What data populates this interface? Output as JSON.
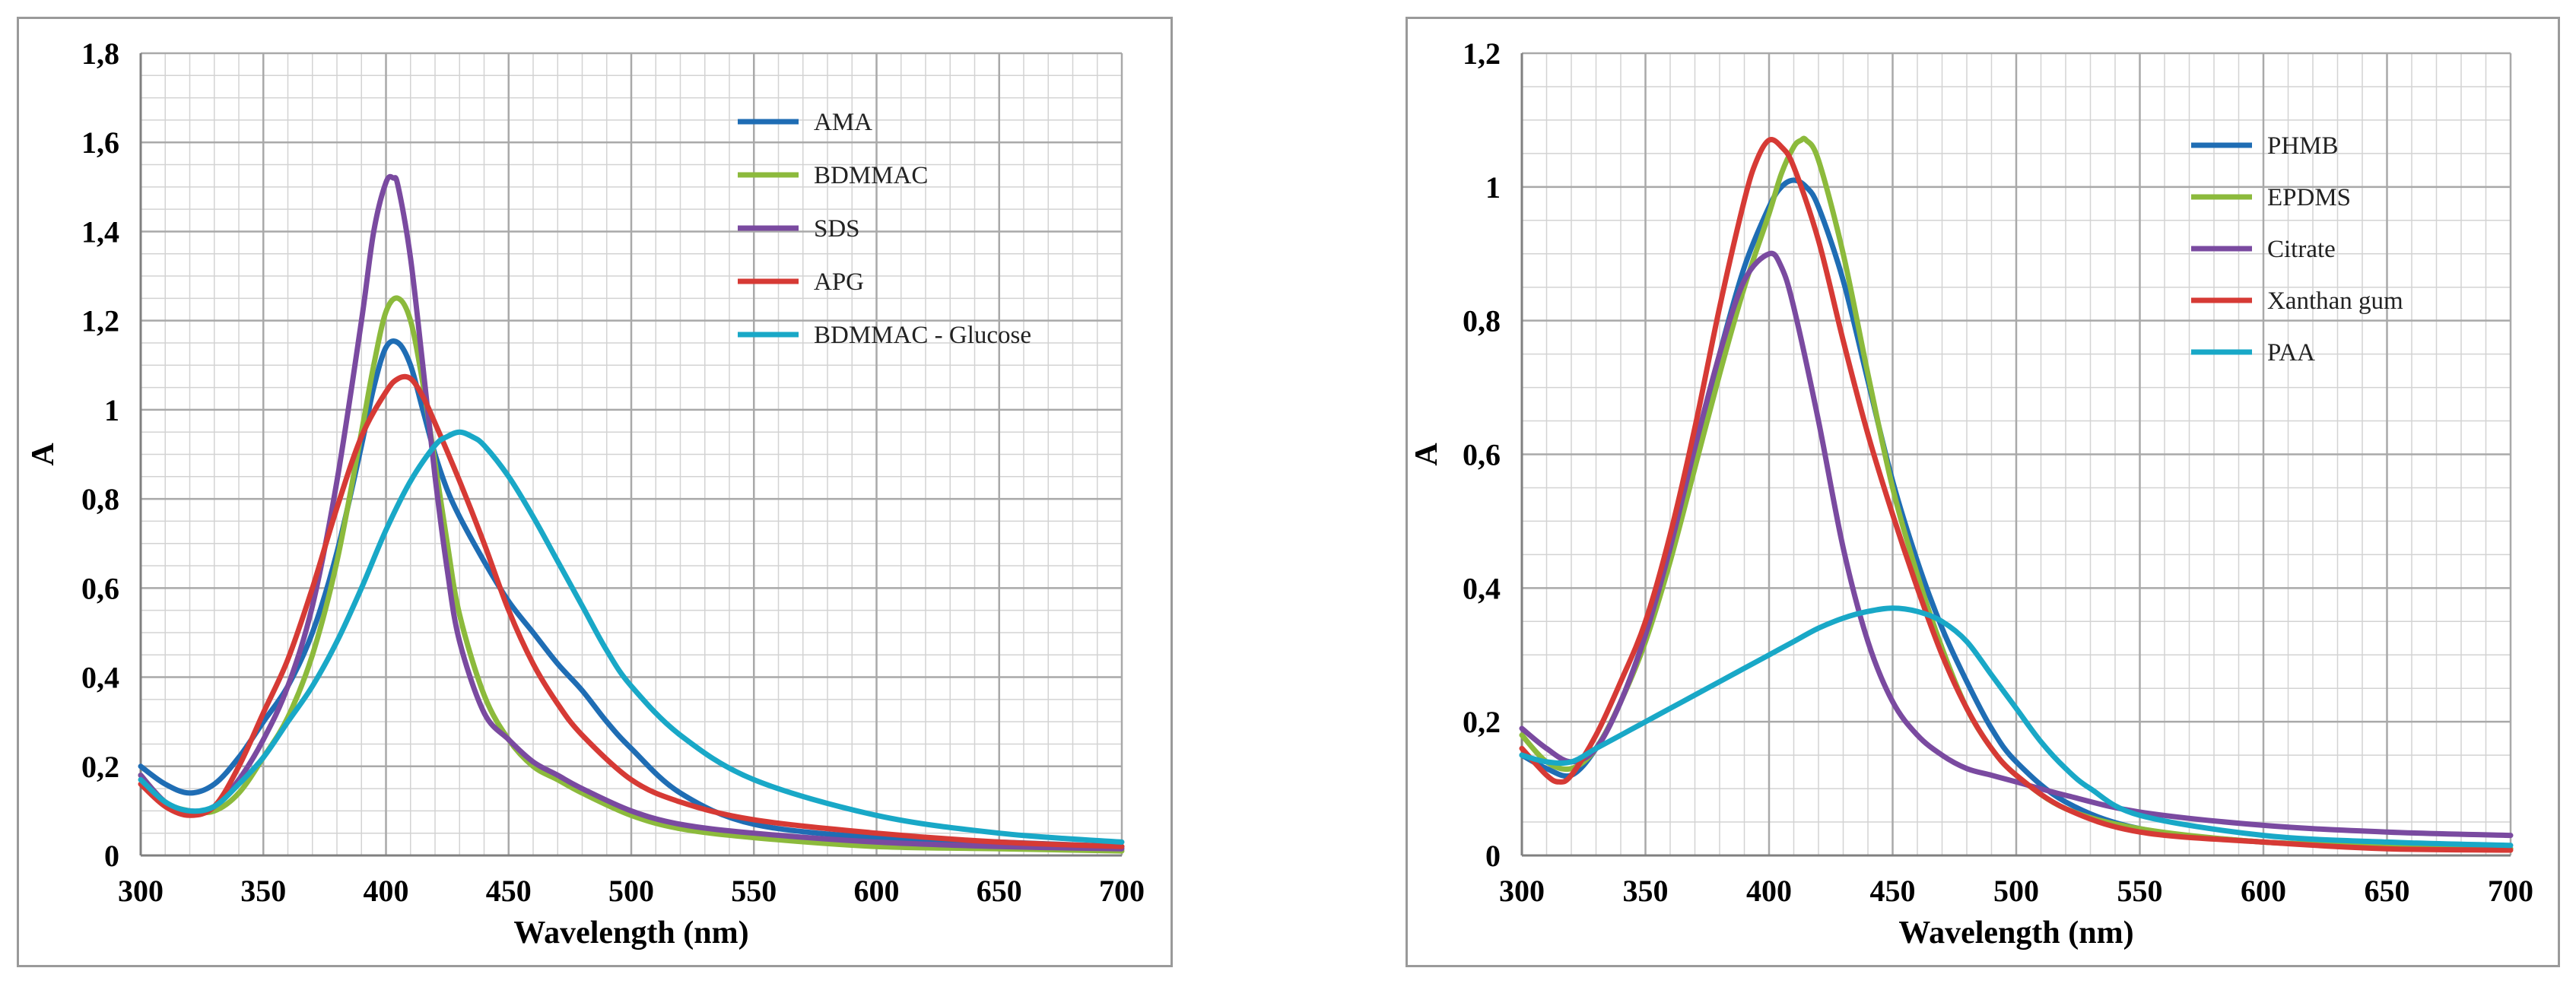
{
  "chart_data": [
    {
      "type": "line",
      "xlabel": "Wavelength (nm)",
      "ylabel": "A",
      "xlim": [
        300,
        700
      ],
      "ylim": [
        0,
        1.8
      ],
      "xticks": [
        300,
        350,
        400,
        450,
        500,
        550,
        600,
        650,
        700
      ],
      "xtick_labels": [
        "300",
        "350",
        "400",
        "450",
        "500",
        "550",
        "600",
        "650",
        "700"
      ],
      "yticks": [
        0,
        0.2,
        0.4,
        0.6,
        0.8,
        1.0,
        1.2,
        1.4,
        1.6,
        1.8
      ],
      "ytick_labels": [
        "0",
        "0,2",
        "0,4",
        "0,6",
        "0,8",
        "1",
        "1,2",
        "1,4",
        "1,6",
        "1,8"
      ],
      "grid": true,
      "legend_position": "top-right",
      "series": [
        {
          "name": "AMA",
          "color": "#1f6db4",
          "x": [
            300,
            310,
            320,
            330,
            340,
            350,
            360,
            370,
            380,
            390,
            395,
            400,
            405,
            410,
            415,
            420,
            425,
            430,
            440,
            450,
            460,
            470,
            480,
            490,
            500,
            520,
            550,
            600,
            650,
            700
          ],
          "y": [
            0.2,
            0.16,
            0.14,
            0.16,
            0.22,
            0.3,
            0.38,
            0.5,
            0.68,
            0.92,
            1.05,
            1.14,
            1.15,
            1.1,
            1.0,
            0.9,
            0.82,
            0.76,
            0.66,
            0.57,
            0.5,
            0.43,
            0.37,
            0.3,
            0.24,
            0.14,
            0.07,
            0.04,
            0.03,
            0.02
          ]
        },
        {
          "name": "BDMMAC",
          "color": "#8cba3c",
          "x": [
            300,
            310,
            320,
            330,
            340,
            350,
            360,
            370,
            380,
            390,
            395,
            400,
            405,
            410,
            415,
            420,
            425,
            430,
            440,
            450,
            460,
            470,
            480,
            500,
            520,
            550,
            600,
            650,
            700
          ],
          "y": [
            0.18,
            0.12,
            0.1,
            0.1,
            0.14,
            0.22,
            0.31,
            0.45,
            0.66,
            0.95,
            1.1,
            1.22,
            1.25,
            1.2,
            1.06,
            0.88,
            0.7,
            0.54,
            0.36,
            0.26,
            0.2,
            0.17,
            0.14,
            0.09,
            0.06,
            0.04,
            0.02,
            0.015,
            0.01
          ]
        },
        {
          "name": "SDS",
          "color": "#7a4aa0",
          "x": [
            300,
            310,
            320,
            330,
            340,
            350,
            360,
            370,
            380,
            390,
            395,
            400,
            403,
            405,
            410,
            415,
            420,
            425,
            430,
            440,
            450,
            460,
            470,
            480,
            500,
            520,
            550,
            600,
            650,
            700
          ],
          "y": [
            0.18,
            0.12,
            0.1,
            0.11,
            0.17,
            0.26,
            0.38,
            0.56,
            0.84,
            1.2,
            1.4,
            1.51,
            1.52,
            1.5,
            1.34,
            1.1,
            0.85,
            0.64,
            0.48,
            0.32,
            0.26,
            0.21,
            0.18,
            0.15,
            0.1,
            0.07,
            0.05,
            0.03,
            0.02,
            0.015
          ]
        },
        {
          "name": "APG",
          "color": "#d63a35",
          "x": [
            300,
            310,
            320,
            330,
            340,
            350,
            360,
            370,
            380,
            390,
            400,
            405,
            410,
            415,
            420,
            430,
            440,
            450,
            460,
            470,
            480,
            500,
            520,
            550,
            600,
            650,
            700
          ],
          "y": [
            0.16,
            0.11,
            0.09,
            0.11,
            0.2,
            0.32,
            0.44,
            0.6,
            0.78,
            0.94,
            1.04,
            1.07,
            1.07,
            1.03,
            0.97,
            0.84,
            0.7,
            0.55,
            0.43,
            0.34,
            0.27,
            0.17,
            0.12,
            0.08,
            0.05,
            0.03,
            0.02
          ]
        },
        {
          "name": "BDMMAC - Glucose",
          "color": "#19a8c7",
          "x": [
            300,
            310,
            320,
            330,
            340,
            350,
            360,
            370,
            380,
            390,
            400,
            410,
            420,
            425,
            430,
            435,
            440,
            450,
            460,
            470,
            480,
            490,
            500,
            520,
            550,
            600,
            650,
            700
          ],
          "y": [
            0.17,
            0.12,
            0.1,
            0.11,
            0.16,
            0.22,
            0.3,
            0.38,
            0.48,
            0.6,
            0.73,
            0.84,
            0.92,
            0.94,
            0.95,
            0.94,
            0.92,
            0.85,
            0.76,
            0.66,
            0.56,
            0.46,
            0.38,
            0.27,
            0.17,
            0.09,
            0.05,
            0.03
          ]
        }
      ]
    },
    {
      "type": "line",
      "xlabel": "Wavelength (nm)",
      "ylabel": "A",
      "xlim": [
        300,
        700
      ],
      "ylim": [
        0,
        1.2
      ],
      "xticks": [
        300,
        350,
        400,
        450,
        500,
        550,
        600,
        650,
        700
      ],
      "xtick_labels": [
        "300",
        "350",
        "400",
        "450",
        "500",
        "550",
        "600",
        "650",
        "700"
      ],
      "yticks": [
        0,
        0.2,
        0.4,
        0.6,
        0.8,
        1.0,
        1.2
      ],
      "ytick_labels": [
        "0",
        "0,2",
        "0,4",
        "0,6",
        "0,8",
        "1",
        "1,2"
      ],
      "grid": true,
      "legend_position": "top-right",
      "series": [
        {
          "name": "PHMB",
          "color": "#1f6db4",
          "x": [
            300,
            310,
            320,
            330,
            340,
            350,
            360,
            370,
            380,
            390,
            400,
            405,
            410,
            415,
            420,
            430,
            440,
            450,
            460,
            470,
            480,
            490,
            500,
            520,
            550,
            600,
            650,
            700
          ],
          "y": [
            0.15,
            0.13,
            0.12,
            0.16,
            0.23,
            0.33,
            0.45,
            0.6,
            0.75,
            0.88,
            0.97,
            1.0,
            1.01,
            1.0,
            0.97,
            0.86,
            0.71,
            0.56,
            0.44,
            0.34,
            0.26,
            0.19,
            0.14,
            0.08,
            0.04,
            0.02,
            0.015,
            0.01
          ]
        },
        {
          "name": "EPDMS",
          "color": "#8cba3c",
          "x": [
            300,
            310,
            320,
            330,
            340,
            350,
            360,
            370,
            380,
            390,
            400,
            405,
            410,
            413,
            415,
            420,
            430,
            440,
            450,
            460,
            470,
            480,
            490,
            500,
            520,
            550,
            600,
            650,
            700
          ],
          "y": [
            0.18,
            0.14,
            0.13,
            0.16,
            0.23,
            0.32,
            0.44,
            0.58,
            0.72,
            0.85,
            0.96,
            1.02,
            1.06,
            1.07,
            1.07,
            1.04,
            0.9,
            0.72,
            0.55,
            0.42,
            0.31,
            0.22,
            0.16,
            0.12,
            0.07,
            0.04,
            0.02,
            0.015,
            0.01
          ]
        },
        {
          "name": "Citrate",
          "color": "#7a4aa0",
          "x": [
            300,
            310,
            320,
            330,
            340,
            350,
            360,
            370,
            380,
            390,
            400,
            405,
            410,
            420,
            430,
            440,
            450,
            460,
            470,
            480,
            490,
            500,
            520,
            550,
            600,
            650,
            700
          ],
          "y": [
            0.19,
            0.16,
            0.14,
            0.16,
            0.23,
            0.33,
            0.46,
            0.61,
            0.75,
            0.86,
            0.9,
            0.88,
            0.82,
            0.65,
            0.46,
            0.32,
            0.23,
            0.18,
            0.15,
            0.13,
            0.12,
            0.11,
            0.09,
            0.065,
            0.045,
            0.035,
            0.03
          ]
        },
        {
          "name": "Xanthan gum",
          "color": "#d63a35",
          "x": [
            300,
            310,
            315,
            320,
            330,
            340,
            350,
            360,
            370,
            380,
            390,
            395,
            400,
            405,
            410,
            420,
            430,
            440,
            450,
            460,
            470,
            480,
            490,
            500,
            520,
            550,
            600,
            650,
            700
          ],
          "y": [
            0.16,
            0.12,
            0.11,
            0.12,
            0.18,
            0.26,
            0.35,
            0.48,
            0.64,
            0.82,
            0.98,
            1.04,
            1.07,
            1.06,
            1.03,
            0.92,
            0.77,
            0.63,
            0.51,
            0.4,
            0.3,
            0.22,
            0.16,
            0.12,
            0.07,
            0.035,
            0.02,
            0.01,
            0.008
          ]
        },
        {
          "name": "PAA",
          "color": "#19a8c7",
          "x": [
            300,
            310,
            320,
            330,
            340,
            350,
            360,
            370,
            380,
            390,
            400,
            410,
            420,
            430,
            440,
            450,
            460,
            470,
            480,
            490,
            500,
            510,
            520,
            530,
            550,
            600,
            650,
            700
          ],
          "y": [
            0.15,
            0.14,
            0.14,
            0.16,
            0.18,
            0.2,
            0.22,
            0.24,
            0.26,
            0.28,
            0.3,
            0.32,
            0.34,
            0.355,
            0.365,
            0.37,
            0.365,
            0.35,
            0.32,
            0.27,
            0.22,
            0.17,
            0.13,
            0.1,
            0.06,
            0.03,
            0.02,
            0.015
          ]
        }
      ]
    }
  ]
}
